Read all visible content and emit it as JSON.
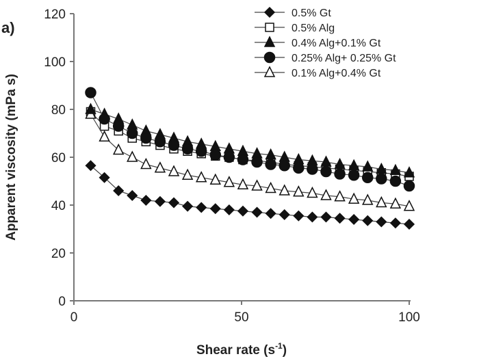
{
  "chart_data": {
    "type": "scatter",
    "panel_label": "a)",
    "xlabel": "Shear rate (s",
    "xlabel_sup": "-1",
    "xlabel_end": ")",
    "ylabel": "Apparent viscosity (mPa s)",
    "xlim": [
      0,
      100
    ],
    "ylim": [
      0,
      120
    ],
    "xticks": [
      "0",
      "50",
      "100"
    ],
    "yticks": [
      "0",
      "20",
      "40",
      "60",
      "80",
      "100",
      "120"
    ],
    "grid": false,
    "legend_position": "top-right",
    "x": [
      5,
      9.1,
      13.3,
      17.4,
      21.5,
      25.7,
      29.8,
      33.9,
      38,
      42.2,
      46.3,
      50.4,
      54.6,
      58.7,
      62.8,
      67,
      71.1,
      75.2,
      79.3,
      83.5,
      87.6,
      91.7,
      95.9,
      100
    ],
    "series": [
      {
        "name": "0.5% Gt",
        "marker": "diamond-filled",
        "values": [
          56.5,
          51.5,
          46,
          44,
          42,
          41.5,
          41,
          39.5,
          39,
          38.5,
          38,
          37.5,
          37,
          36.5,
          36,
          35.5,
          35,
          35,
          34.5,
          34,
          33.5,
          33,
          32.5,
          32
        ]
      },
      {
        "name": "0.5% Alg",
        "marker": "square-open",
        "values": [
          79,
          73,
          71,
          68,
          66.5,
          65,
          63.5,
          62.5,
          61.5,
          60.5,
          60,
          59,
          58.5,
          58,
          57,
          56.5,
          56,
          55.5,
          55,
          54.5,
          54,
          53.5,
          53,
          52
        ]
      },
      {
        "name": "0.4% Alg+0.1% Gt",
        "marker": "triangle-filled",
        "values": [
          80,
          78,
          76,
          73.5,
          71,
          69.5,
          68,
          66.5,
          65.5,
          64.5,
          63.5,
          62.5,
          61.5,
          61,
          60,
          59,
          58.5,
          58,
          57,
          56.5,
          56,
          55,
          54.5,
          53.5
        ]
      },
      {
        "name": "0.25% Alg+ 0.25% Gt",
        "marker": "circle-filled",
        "values": [
          87,
          76,
          73,
          70,
          68,
          66.5,
          65,
          63.5,
          62.5,
          61,
          60,
          59,
          58,
          57,
          56.5,
          55.5,
          55,
          54,
          53,
          52.5,
          51.5,
          51,
          50,
          48
        ]
      },
      {
        "name": "0.1% Alg+0.4% Gt",
        "marker": "triangle-open",
        "values": [
          78,
          68.5,
          63,
          60,
          57,
          55.5,
          54,
          52.5,
          51.5,
          50.5,
          49.5,
          48.5,
          48,
          47,
          46,
          45.5,
          45,
          44,
          43.5,
          42.5,
          42,
          41,
          40.5,
          39.5
        ]
      }
    ]
  }
}
